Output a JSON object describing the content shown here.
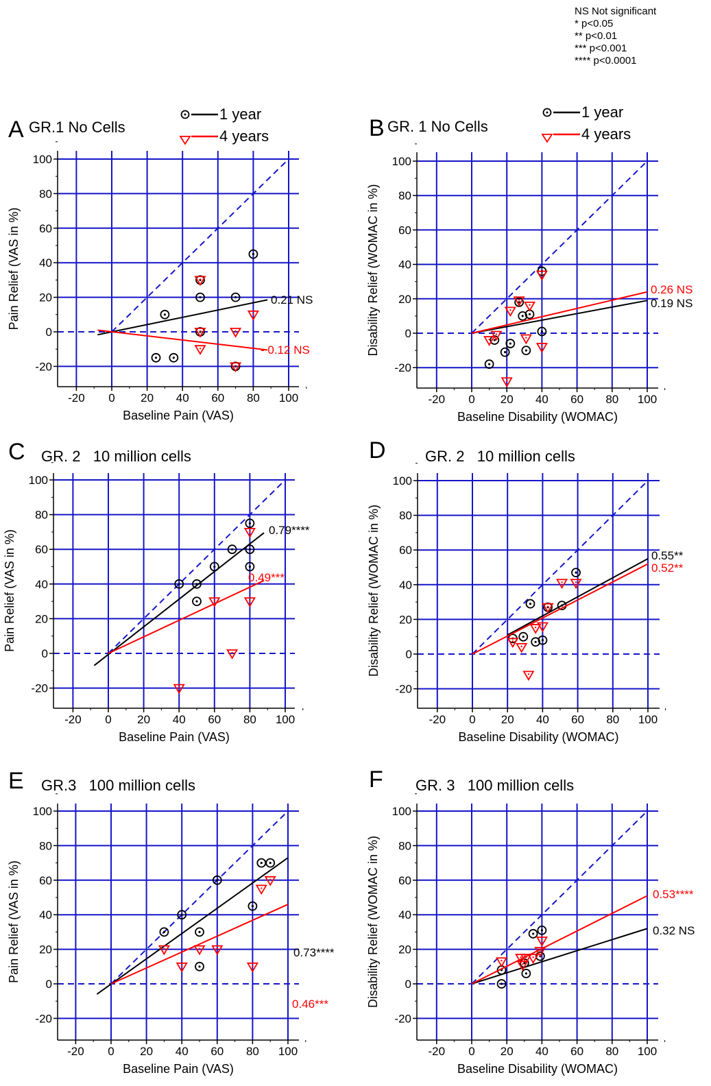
{
  "significance_legend": [
    "NS Not  significant",
    "* p<0.05",
    "** p<0.01",
    "*** p<0.001",
    "**** p<0.0001"
  ],
  "chart_data": [
    {
      "panel": "A",
      "type": "scatter",
      "title": "GR.1 No Cells",
      "xlabel": "Baseline Pain (VAS)",
      "ylabel": "Pain Relief (VAS in %)",
      "xlim": [
        -30,
        105
      ],
      "ylim": [
        -30,
        105
      ],
      "xticks": [
        -20,
        0,
        20,
        40,
        60,
        80,
        100
      ],
      "yticks": [
        -20,
        0,
        20,
        40,
        60,
        80,
        100
      ],
      "grid": true,
      "identity_line": true,
      "legend": [
        {
          "name": "1 year",
          "color": "#000000"
        },
        {
          "name": "4 years",
          "color": "#ff0000"
        }
      ],
      "series": [
        {
          "name": "1 year",
          "color": "#000000",
          "marker": "circle",
          "points": [
            [
              25,
              -15
            ],
            [
              30,
              10
            ],
            [
              35,
              -15
            ],
            [
              50,
              30
            ],
            [
              50,
              20
            ],
            [
              50,
              0
            ],
            [
              70,
              20
            ],
            [
              70,
              -20
            ],
            [
              80,
              45
            ]
          ],
          "fit_line": [
            [
              -8,
              -1.7
            ],
            [
              88,
              18.5
            ]
          ],
          "label": "0.21 NS"
        },
        {
          "name": "4 years",
          "color": "#ff0000",
          "marker": "triangle",
          "points": [
            [
              50,
              30
            ],
            [
              50,
              0
            ],
            [
              50,
              -10
            ],
            [
              70,
              0
            ],
            [
              70,
              -20
            ],
            [
              80,
              10
            ]
          ],
          "fit_line": [
            [
              -8,
              1
            ],
            [
              88,
              -10.5
            ]
          ],
          "label": "- 0.12 NS"
        }
      ]
    },
    {
      "panel": "B",
      "type": "scatter",
      "title": "GR. 1 No Cells",
      "xlabel": "Baseline Disability (WOMAC)",
      "ylabel": "Disability Relief (WOMAC in %)",
      "xlim": [
        -30,
        105
      ],
      "ylim": [
        -30,
        105
      ],
      "xticks": [
        -20,
        0,
        20,
        40,
        60,
        80,
        100
      ],
      "yticks": [
        -20,
        0,
        20,
        40,
        60,
        80,
        100
      ],
      "grid": true,
      "identity_line": true,
      "legend": [
        {
          "name": "1 year",
          "color": "#000000"
        },
        {
          "name": "4 years",
          "color": "#ff0000"
        }
      ],
      "series": [
        {
          "name": "1 year",
          "color": "#000000",
          "marker": "circle",
          "points": [
            [
              10,
              -18
            ],
            [
              13,
              -4
            ],
            [
              19,
              -11
            ],
            [
              22,
              -6
            ],
            [
              27,
              18
            ],
            [
              29,
              10
            ],
            [
              31,
              -10
            ],
            [
              33,
              11
            ],
            [
              40,
              36
            ],
            [
              40,
              1
            ]
          ],
          "fit_line": [
            [
              0,
              0
            ],
            [
              100,
              19
            ]
          ],
          "label": "0.19 NS"
        },
        {
          "name": "4 years",
          "color": "#ff0000",
          "marker": "triangle",
          "points": [
            [
              10,
              -4
            ],
            [
              14,
              -1
            ],
            [
              20,
              -28
            ],
            [
              22,
              13
            ],
            [
              27,
              19
            ],
            [
              31,
              -3
            ],
            [
              33,
              16
            ],
            [
              40,
              34
            ],
            [
              40,
              -8
            ]
          ],
          "fit_line": [
            [
              0,
              0
            ],
            [
              100,
              24
            ]
          ],
          "label": "0.26 NS"
        }
      ]
    },
    {
      "panel": "C",
      "type": "scatter",
      "title": "GR. 2   10 million cells",
      "xlabel": "Baseline Pain (VAS)",
      "ylabel": "Pain Relief (VAS in %)",
      "xlim": [
        -30,
        105
      ],
      "ylim": [
        -30,
        105
      ],
      "xticks": [
        -20,
        0,
        20,
        40,
        60,
        80,
        100
      ],
      "yticks": [
        -20,
        0,
        20,
        40,
        60,
        80,
        100
      ],
      "grid": true,
      "identity_line": true,
      "series": [
        {
          "name": "1 year",
          "color": "#000000",
          "marker": "circle",
          "points": [
            [
              40,
              40
            ],
            [
              50,
              40
            ],
            [
              50,
              30
            ],
            [
              60,
              50
            ],
            [
              70,
              60
            ],
            [
              80,
              75
            ],
            [
              80,
              60
            ],
            [
              80,
              50
            ]
          ],
          "fit_line": [
            [
              -8,
              -7
            ],
            [
              88,
              69.5
            ]
          ],
          "label": "0.79****"
        },
        {
          "name": "4 years",
          "color": "#ff0000",
          "marker": "triangle",
          "points": [
            [
              40,
              -20
            ],
            [
              60,
              30
            ],
            [
              70,
              0
            ],
            [
              80,
              70
            ],
            [
              80,
              30
            ]
          ],
          "fit_line": [
            [
              0,
              0
            ],
            [
              88,
              42
            ]
          ],
          "label": "0.49***"
        }
      ]
    },
    {
      "panel": "D",
      "type": "scatter",
      "title": "GR. 2   10 million cells",
      "xlabel": "Baseline Disability (WOMAC)",
      "ylabel": "Disability Relief (WOMAC in %)",
      "xlim": [
        -30,
        105
      ],
      "ylim": [
        -30,
        105
      ],
      "xticks": [
        -20,
        0,
        20,
        40,
        60,
        80,
        100
      ],
      "yticks": [
        -20,
        0,
        20,
        40,
        60,
        80,
        100
      ],
      "grid": true,
      "identity_line": true,
      "series": [
        {
          "name": "1 year",
          "color": "#000000",
          "marker": "circle",
          "points": [
            [
              23,
              9
            ],
            [
              29,
              10
            ],
            [
              33,
              29
            ],
            [
              36,
              7
            ],
            [
              40,
              8
            ],
            [
              43,
              27
            ],
            [
              51,
              28
            ],
            [
              59,
              47
            ]
          ],
          "fit_line": [
            [
              20,
              11
            ],
            [
              100,
              55
            ]
          ],
          "label": "0.55**"
        },
        {
          "name": "4 years",
          "color": "#ff0000",
          "marker": "triangle",
          "points": [
            [
              23,
              7
            ],
            [
              28,
              4
            ],
            [
              32,
              -12
            ],
            [
              36,
              15
            ],
            [
              40,
              16
            ],
            [
              43,
              27
            ],
            [
              51,
              41
            ],
            [
              59,
              41
            ]
          ],
          "fit_line": [
            [
              0,
              0
            ],
            [
              100,
              52
            ]
          ],
          "label": "0.52**"
        }
      ]
    },
    {
      "panel": "E",
      "type": "scatter",
      "title": "GR.3   100 million cells",
      "xlabel": "Baseline Pain (VAS)",
      "ylabel": "Pain Relief (VAS in %)",
      "xlim": [
        -30,
        105
      ],
      "ylim": [
        -30,
        105
      ],
      "xticks": [
        -20,
        0,
        20,
        40,
        60,
        80,
        100
      ],
      "yticks": [
        -20,
        0,
        20,
        40,
        60,
        80,
        100
      ],
      "grid": true,
      "identity_line": true,
      "series": [
        {
          "name": "1 year",
          "color": "#000000",
          "marker": "circle",
          "points": [
            [
              30,
              30
            ],
            [
              40,
              40
            ],
            [
              50,
              30
            ],
            [
              50,
              10
            ],
            [
              60,
              60
            ],
            [
              80,
              45
            ],
            [
              85,
              70
            ],
            [
              90,
              70
            ]
          ],
          "fit_line": [
            [
              -8,
              -6
            ],
            [
              100,
              73
            ]
          ],
          "label": "0.73****"
        },
        {
          "name": "4 years",
          "color": "#ff0000",
          "marker": "triangle",
          "points": [
            [
              30,
              20
            ],
            [
              40,
              10
            ],
            [
              50,
              20
            ],
            [
              60,
              20
            ],
            [
              80,
              10
            ],
            [
              85,
              55
            ],
            [
              90,
              60
            ]
          ],
          "fit_line": [
            [
              0,
              0
            ],
            [
              100,
              46
            ]
          ],
          "label": "0.46***"
        }
      ]
    },
    {
      "panel": "F",
      "type": "scatter",
      "title": "GR. 3   100 million cells",
      "xlabel": "Baseline Disability (WOMAC)",
      "ylabel": "Disability Relief (WOMAC in %)",
      "xlim": [
        -30,
        105
      ],
      "ylim": [
        -30,
        105
      ],
      "xticks": [
        -20,
        0,
        20,
        40,
        60,
        80,
        100
      ],
      "yticks": [
        -20,
        0,
        20,
        40,
        60,
        80,
        100
      ],
      "grid": true,
      "identity_line": true,
      "series": [
        {
          "name": "1 year",
          "color": "#000000",
          "marker": "circle",
          "points": [
            [
              17,
              8
            ],
            [
              17,
              0
            ],
            [
              30,
              12
            ],
            [
              31,
              6
            ],
            [
              35,
              29
            ],
            [
              39,
              16
            ],
            [
              40,
              31
            ]
          ],
          "fit_line": [
            [
              0,
              0
            ],
            [
              100,
              32
            ]
          ],
          "label": "0.32 NS"
        },
        {
          "name": "4 years",
          "color": "#ff0000",
          "marker": "triangle",
          "points": [
            [
              17,
              13
            ],
            [
              28,
              15
            ],
            [
              29,
              11
            ],
            [
              31,
              15
            ],
            [
              35,
              15
            ],
            [
              39,
              19
            ],
            [
              40,
              25
            ]
          ],
          "fit_line": [
            [
              0,
              0
            ],
            [
              100,
              51
            ]
          ],
          "label": "0.53****"
        }
      ]
    }
  ]
}
